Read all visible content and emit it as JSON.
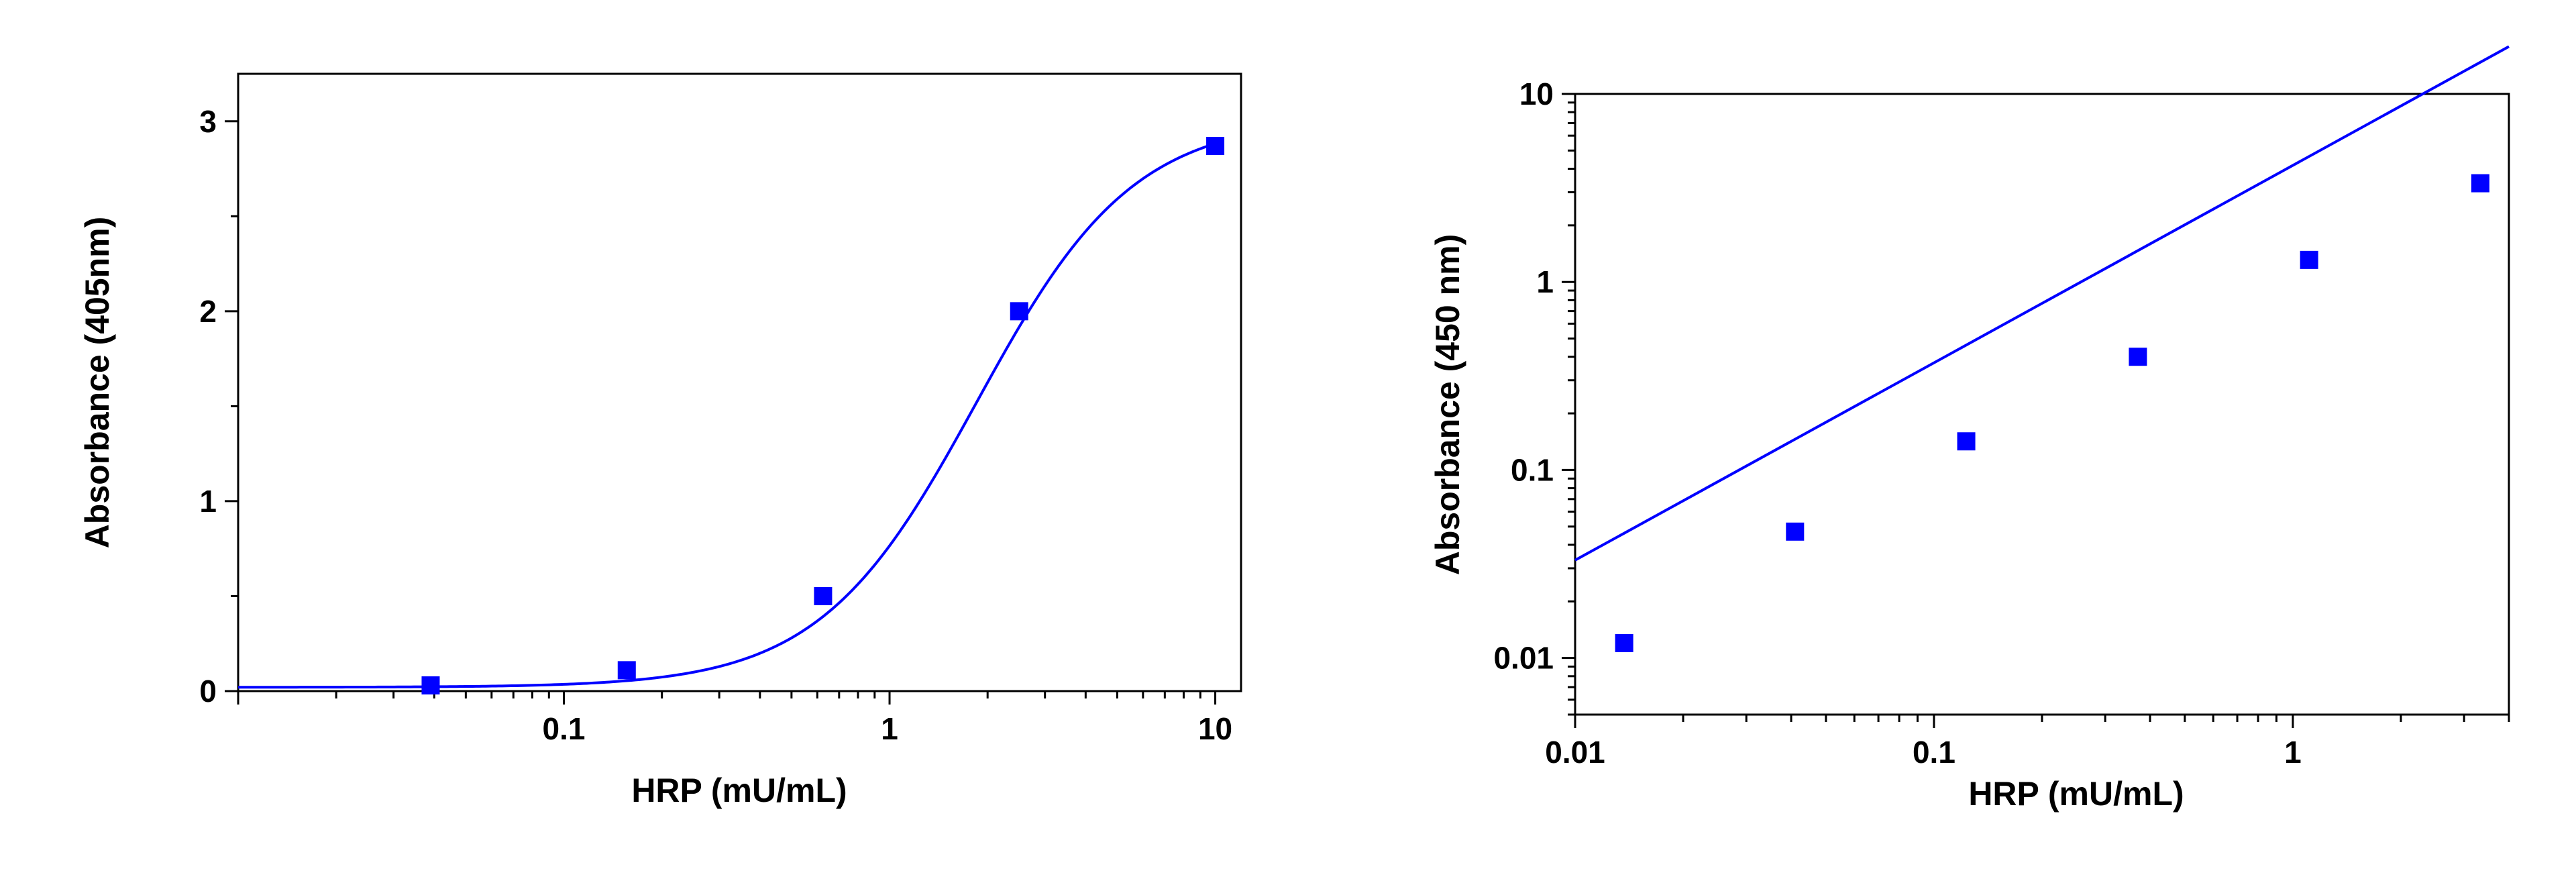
{
  "chart_data": [
    {
      "type": "scatter",
      "xlabel": "HRP (mU/mL)",
      "ylabel": "Absorbance (405nm)",
      "xscale": "log",
      "yscale": "linear",
      "xlim": [
        0.01,
        12
      ],
      "ylim": [
        0,
        3.25
      ],
      "xticks": [
        0.1,
        1,
        10
      ],
      "xtick_labels": [
        "0.1",
        "1",
        "10"
      ],
      "yticks": [
        0,
        1,
        2,
        3
      ],
      "ytick_labels": [
        "0",
        "1",
        "2",
        "3"
      ],
      "grid": false,
      "marker_color": "#0000ff",
      "line_color": "#0000ff",
      "fit": "four-parameter logistic",
      "series": [
        {
          "x": [
            0.039,
            0.156,
            0.625,
            2.5,
            10
          ],
          "y": [
            0.03,
            0.11,
            0.5,
            2.0,
            2.87
          ]
        }
      ]
    },
    {
      "type": "scatter",
      "xlabel": "HRP (mU/mL)",
      "ylabel": "Absorbance (450 nm)",
      "xscale": "log",
      "yscale": "log",
      "xlim": [
        0.01,
        4
      ],
      "ylim": [
        0.005,
        10
      ],
      "xticks": [
        0.01,
        0.1,
        1
      ],
      "xtick_labels": [
        "0.01",
        "0.1",
        "1"
      ],
      "yticks": [
        0.01,
        0.1,
        1,
        10
      ],
      "ytick_labels": [
        "0.01",
        "0.1",
        "1",
        "10"
      ],
      "grid": false,
      "marker_color": "#0000ff",
      "line_color": "#0000ff",
      "fit": "linear (log-log)",
      "series": [
        {
          "x": [
            0.0137,
            0.041,
            0.123,
            0.37,
            1.11,
            3.33
          ],
          "y": [
            0.012,
            0.047,
            0.142,
            0.4,
            1.31,
            3.35
          ]
        }
      ]
    }
  ]
}
